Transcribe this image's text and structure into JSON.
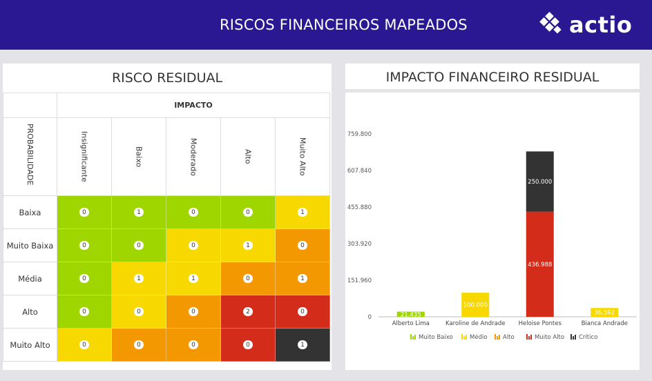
{
  "header": {
    "title": "RISCOS FINANCEIROS MAPEADOS",
    "logo_text": "actio"
  },
  "matrix": {
    "title": "RISCO RESIDUAL",
    "impact_label": "IMPACTO",
    "probability_label": "PROBABILIDADE",
    "columns": [
      "Insignificante",
      "Baixo",
      "Moderado",
      "Alto",
      "Muito Alto"
    ],
    "rows": [
      {
        "label": "Baixa",
        "values": [
          "0",
          "1",
          "0",
          "0",
          "1"
        ],
        "colors": [
          "#9fd600",
          "#9fd600",
          "#9fd600",
          "#9fd600",
          "#f7d800"
        ]
      },
      {
        "label": "Muito Baixa",
        "values": [
          "0",
          "0",
          "0",
          "1",
          "0"
        ],
        "colors": [
          "#9fd600",
          "#9fd600",
          "#f7d800",
          "#f7d800",
          "#f39800"
        ]
      },
      {
        "label": "Média",
        "values": [
          "0",
          "1",
          "1",
          "0",
          "1"
        ],
        "colors": [
          "#9fd600",
          "#f7d800",
          "#f7d800",
          "#f39800",
          "#f39800"
        ]
      },
      {
        "label": "Alto",
        "values": [
          "0",
          "0",
          "0",
          "2",
          "0"
        ],
        "colors": [
          "#9fd600",
          "#f7d800",
          "#f39800",
          "#d42c1a",
          "#d42c1a"
        ]
      },
      {
        "label": "Muito Alto",
        "values": [
          "0",
          "0",
          "0",
          "0",
          "1"
        ],
        "colors": [
          "#f7d800",
          "#f39800",
          "#f39800",
          "#d42c1a",
          "#333333"
        ]
      }
    ]
  },
  "chart_title": "IMPACTO FINANCEIRO RESIDUAL",
  "chart_data": {
    "type": "bar",
    "stacked": true,
    "categories": [
      "Alberto Lima",
      "Karoline de Andrade",
      "Heloise Pontes",
      "Bianca Andrade"
    ],
    "series": [
      {
        "name": "Muito Baixo",
        "color": "#9fd600",
        "values": [
          21435,
          0,
          0,
          0
        ],
        "labels": [
          "21.435",
          "",
          "",
          ""
        ]
      },
      {
        "name": "Médio",
        "color": "#f7d800",
        "values": [
          0,
          100000,
          0,
          36592
        ],
        "labels": [
          "",
          "100.000",
          "",
          "36.592"
        ]
      },
      {
        "name": "Alto",
        "color": "#f39800",
        "values": [
          0,
          0,
          0,
          0
        ],
        "labels": [
          "",
          "",
          "",
          ""
        ]
      },
      {
        "name": "Muito Alto",
        "color": "#d42c1a",
        "values": [
          0,
          0,
          436988,
          0
        ],
        "labels": [
          "",
          "",
          "436.988",
          ""
        ]
      },
      {
        "name": "Crítico",
        "color": "#333333",
        "values": [
          0,
          0,
          250000,
          0
        ],
        "labels": [
          "",
          "",
          "250.000",
          ""
        ]
      }
    ],
    "y_ticks": [
      "0",
      "151.960",
      "303.920",
      "455.880",
      "607.840",
      "759.800"
    ],
    "ylim": [
      0,
      759800
    ],
    "legend_position": "bottom"
  }
}
